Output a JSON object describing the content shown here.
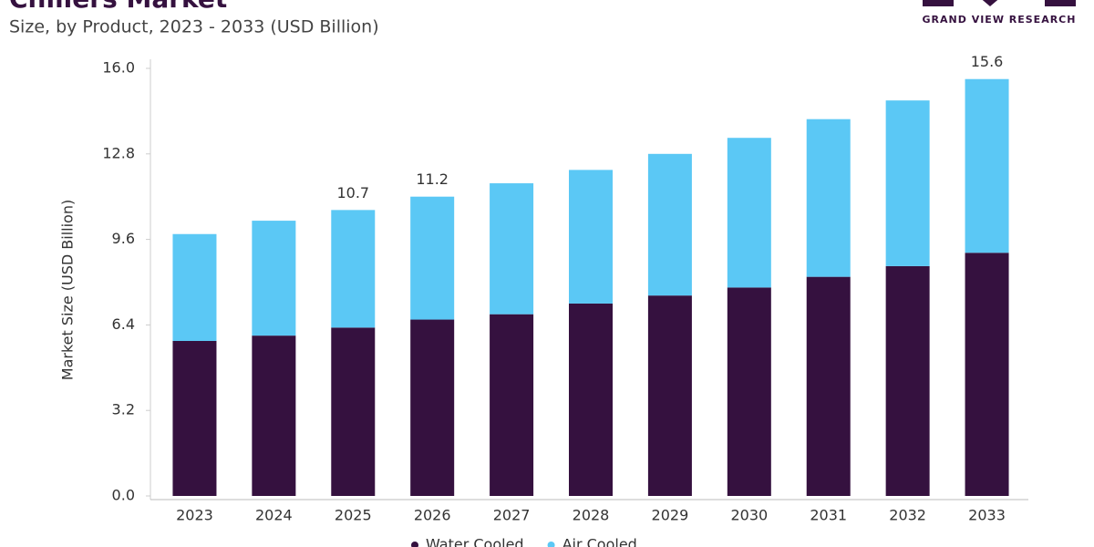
{
  "chart_data": {
    "type": "stacked-bar",
    "title": "Chillers Market",
    "subtitle": "Size, by Product, 2023 - 2033 (USD Billion)",
    "source": "GRAND VIEW RESEARCH",
    "y_label": "Market Size (USD Billion)",
    "categories": [
      "2023",
      "2024",
      "2025",
      "2026",
      "2027",
      "2028",
      "2029",
      "2030",
      "2031",
      "2032",
      "2033"
    ],
    "series": [
      {
        "name": "Water Cooled",
        "color": "#35113f",
        "values": [
          5.8,
          6.0,
          6.3,
          6.6,
          6.8,
          7.2,
          7.5,
          7.8,
          8.2,
          8.6,
          9.1
        ]
      },
      {
        "name": "Air Cooled",
        "color": "#5bc8f5",
        "values": [
          4.0,
          4.3,
          4.4,
          4.6,
          4.9,
          5.0,
          5.3,
          5.6,
          5.9,
          6.2,
          6.5
        ]
      }
    ],
    "total_labels": [
      {
        "category": "2025",
        "value": 10.7
      },
      {
        "category": "2026",
        "value": 11.2
      },
      {
        "category": "2033",
        "value": 15.6
      }
    ],
    "ylim": [
      0,
      16
    ],
    "yticks": [
      {
        "value": 0,
        "label": "0.0"
      },
      3.2,
      6.4,
      9.6,
      12.8,
      {
        "value": 16,
        "label": "16.0"
      }
    ],
    "grid": false
  }
}
